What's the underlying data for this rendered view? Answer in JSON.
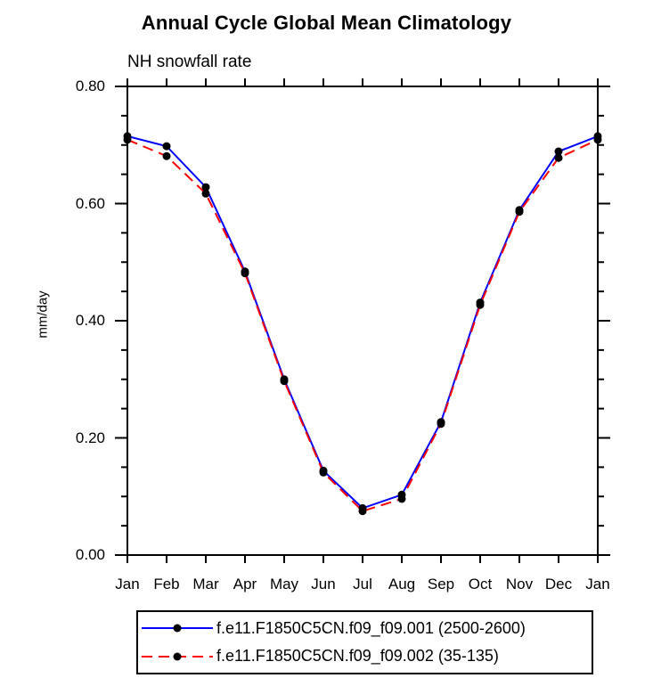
{
  "title": "Annual Cycle Global Mean Climatology",
  "subtitle": "NH snowfall rate",
  "ylabel": "mm/day",
  "colors": {
    "axis": "#000000",
    "marker": "#000000",
    "series1": "#0000ff",
    "series2": "#ff0000",
    "background": "#ffffff"
  },
  "chart_data": {
    "type": "line",
    "categories": [
      "Jan",
      "Feb",
      "Mar",
      "Apr",
      "May",
      "Jun",
      "Jul",
      "Aug",
      "Sep",
      "Oct",
      "Nov",
      "Dec",
      "Jan"
    ],
    "series": [
      {
        "name": "f.e11.F1850C5CN.f09_f09.001 (2500-2600)",
        "color": "#0000ff",
        "style": "solid",
        "marker": "circle",
        "marker_color": "#000000",
        "values": [
          0.715,
          0.698,
          0.628,
          0.484,
          0.3,
          0.144,
          0.08,
          0.103,
          0.227,
          0.431,
          0.589,
          0.689,
          0.715
        ]
      },
      {
        "name": "f.e11.F1850C5CN.f09_f09.002 (35-135)",
        "color": "#ff0000",
        "style": "dashed",
        "marker": "circle",
        "marker_color": "#000000",
        "values": [
          0.709,
          0.681,
          0.617,
          0.481,
          0.297,
          0.141,
          0.075,
          0.096,
          0.224,
          0.427,
          0.586,
          0.678,
          0.709
        ]
      }
    ],
    "xlabel": "",
    "ylabel": "mm/day",
    "ylim": [
      0.0,
      0.8
    ],
    "ytick_major": [
      0.0,
      0.2,
      0.4,
      0.6,
      0.8
    ],
    "ytick_labels": [
      "0.00",
      "0.20",
      "0.40",
      "0.60",
      "0.80"
    ],
    "ytick_minor_step": 0.05,
    "grid": false,
    "legend_position": "bottom"
  }
}
